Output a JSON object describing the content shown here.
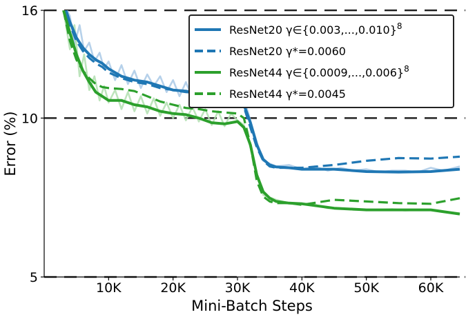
{
  "chart_data": {
    "type": "line",
    "xlabel": "Mini-Batch Steps",
    "ylabel": "Error (%)",
    "xlim": [
      0,
      64500
    ],
    "ylim": [
      5,
      16
    ],
    "y_scale": "log",
    "grid": "horizontal dashed at y-ticks",
    "legend_position": "top-right",
    "x_ticks": [
      {
        "value": 10000,
        "label": "10K"
      },
      {
        "value": 20000,
        "label": "20K"
      },
      {
        "value": 30000,
        "label": "30K"
      },
      {
        "value": 40000,
        "label": "40K"
      },
      {
        "value": 50000,
        "label": "50K"
      },
      {
        "value": 60000,
        "label": "60K"
      }
    ],
    "y_ticks": [
      {
        "value": 5,
        "label": "5"
      },
      {
        "value": 10,
        "label": "10"
      },
      {
        "value": 16,
        "label": "16"
      }
    ],
    "series": [
      {
        "name": "ResNet20 γ∈{0.003,...,0.010}",
        "name_sup": "8",
        "color": "#1f77b4",
        "style": "solid",
        "x": [
          3000,
          4000,
          5000,
          6000,
          7000,
          8000,
          9000,
          10000,
          12000,
          14000,
          16000,
          18000,
          20000,
          22000,
          24000,
          26000,
          28000,
          30000,
          31000,
          32000,
          33000,
          34000,
          35000,
          36000,
          38000,
          40000,
          45000,
          50000,
          55000,
          60000,
          64500
        ],
        "y": [
          16.5,
          15.2,
          14.2,
          13.6,
          13.2,
          12.9,
          12.7,
          12.4,
          12.0,
          11.8,
          11.7,
          11.5,
          11.3,
          11.25,
          11.1,
          11.1,
          11.0,
          11.0,
          10.6,
          9.8,
          8.9,
          8.35,
          8.15,
          8.08,
          8.05,
          8.0,
          8.0,
          7.92,
          7.9,
          7.92,
          8.0
        ]
      },
      {
        "name": "ResNet20 γ*=0.0060",
        "color": "#1f77b4",
        "style": "dashed",
        "x": [
          3000,
          4000,
          5000,
          6000,
          7000,
          8000,
          9000,
          10000,
          12000,
          14000,
          16000,
          18000,
          20000,
          22000,
          24000,
          26000,
          28000,
          30000,
          31000,
          32000,
          33000,
          34000,
          35000,
          36000,
          38000,
          40000,
          45000,
          50000,
          55000,
          60000,
          64500
        ],
        "y": [
          16.5,
          15.0,
          14.0,
          13.4,
          13.0,
          12.7,
          12.5,
          12.2,
          11.9,
          11.7,
          11.6,
          11.4,
          11.3,
          11.2,
          11.15,
          11.1,
          11.0,
          10.9,
          10.5,
          9.6,
          8.8,
          8.3,
          8.1,
          8.05,
          8.05,
          8.05,
          8.15,
          8.3,
          8.4,
          8.38,
          8.45
        ]
      },
      {
        "name": "ResNet44 γ∈{0.0009,...,0.006}",
        "name_sup": "8",
        "color": "#2ca02c",
        "style": "solid",
        "x": [
          3000,
          4000,
          5000,
          6000,
          7000,
          8000,
          9000,
          10000,
          12000,
          14000,
          16000,
          18000,
          20000,
          22000,
          24000,
          26000,
          28000,
          30000,
          31000,
          32000,
          33000,
          34000,
          35000,
          36000,
          38000,
          40000,
          45000,
          50000,
          55000,
          60000,
          64500
        ],
        "y": [
          16.0,
          14.5,
          13.2,
          12.3,
          11.7,
          11.2,
          11.0,
          10.8,
          10.8,
          10.6,
          10.5,
          10.3,
          10.2,
          10.15,
          10.0,
          9.8,
          9.75,
          9.85,
          9.6,
          8.9,
          7.8,
          7.25,
          7.05,
          6.95,
          6.9,
          6.88,
          6.75,
          6.7,
          6.7,
          6.7,
          6.58
        ]
      },
      {
        "name": "ResNet44 γ*=0.0045",
        "color": "#2ca02c",
        "style": "dashed",
        "x": [
          3000,
          4000,
          5000,
          6000,
          7000,
          8000,
          9000,
          10000,
          12000,
          14000,
          16000,
          18000,
          20000,
          22000,
          24000,
          26000,
          28000,
          30000,
          31000,
          32000,
          33000,
          34000,
          35000,
          36000,
          38000,
          40000,
          45000,
          50000,
          55000,
          60000,
          64500
        ],
        "y": [
          16.0,
          14.0,
          12.9,
          12.3,
          11.9,
          11.6,
          11.45,
          11.4,
          11.35,
          11.25,
          11.0,
          10.75,
          10.6,
          10.45,
          10.4,
          10.3,
          10.25,
          10.2,
          10.0,
          8.9,
          7.6,
          7.1,
          6.95,
          6.9,
          6.9,
          6.85,
          7.0,
          6.95,
          6.9,
          6.88,
          7.05
        ]
      }
    ],
    "raw_series": [
      {
        "name": "ResNet20 raw",
        "color": "#a9c9e6",
        "x": [
          3000,
          4000,
          4700,
          5500,
          6200,
          7000,
          7800,
          8600,
          9300,
          10000,
          11000,
          12000,
          13000,
          14000,
          15000,
          16000,
          17000,
          18000,
          19000,
          20000,
          21000,
          22000,
          23000,
          24000,
          25000,
          26000,
          27000,
          28000,
          29000,
          30000,
          31000,
          32000,
          33000,
          34000,
          36000,
          38000,
          40000,
          42000,
          44000,
          46000,
          48000,
          50000,
          52000,
          54000,
          56000,
          58000,
          60000,
          62000,
          64500
        ],
        "y": [
          16.5,
          15.6,
          13.8,
          15.0,
          13.4,
          13.9,
          12.8,
          13.3,
          12.4,
          12.8,
          11.8,
          12.6,
          11.6,
          12.3,
          11.4,
          12.1,
          11.5,
          12.0,
          11.2,
          11.8,
          11.0,
          11.7,
          10.9,
          11.6,
          10.8,
          11.5,
          10.9,
          11.4,
          10.7,
          11.3,
          10.9,
          9.9,
          9.0,
          8.3,
          8.1,
          8.15,
          8.0,
          8.1,
          7.95,
          8.05,
          7.95,
          8.0,
          7.9,
          7.95,
          7.95,
          7.9,
          8.05,
          7.95,
          8.1
        ]
      },
      {
        "name": "ResNet44 raw",
        "color": "#b2dfb0",
        "x": [
          3000,
          4000,
          4700,
          5500,
          6200,
          7000,
          7800,
          8600,
          9300,
          10000,
          11000,
          12000,
          13000,
          14000,
          15000,
          16000,
          17000,
          18000,
          19000,
          20000,
          21000,
          22000,
          23000,
          24000,
          25000,
          26000,
          27000,
          28000,
          29000,
          30000,
          31000,
          32000,
          33000,
          34000,
          36000,
          38000,
          40000,
          42000,
          44000,
          46000,
          48000,
          50000,
          52000,
          54000,
          56000,
          58000,
          60000,
          62000,
          64500
        ],
        "y": [
          16.0,
          13.5,
          15.0,
          12.0,
          13.2,
          11.3,
          12.0,
          10.8,
          11.5,
          10.7,
          11.3,
          10.4,
          11.2,
          10.3,
          11.0,
          10.2,
          10.9,
          10.1,
          10.7,
          10.0,
          10.6,
          9.9,
          10.5,
          9.85,
          10.4,
          9.7,
          10.3,
          9.65,
          10.2,
          9.9,
          9.7,
          8.8,
          7.8,
          7.15,
          7.0,
          6.9,
          6.9,
          6.85,
          6.75,
          6.75,
          6.7,
          6.7,
          6.7,
          6.72,
          6.68,
          6.7,
          6.7,
          6.65,
          6.6
        ]
      }
    ]
  }
}
